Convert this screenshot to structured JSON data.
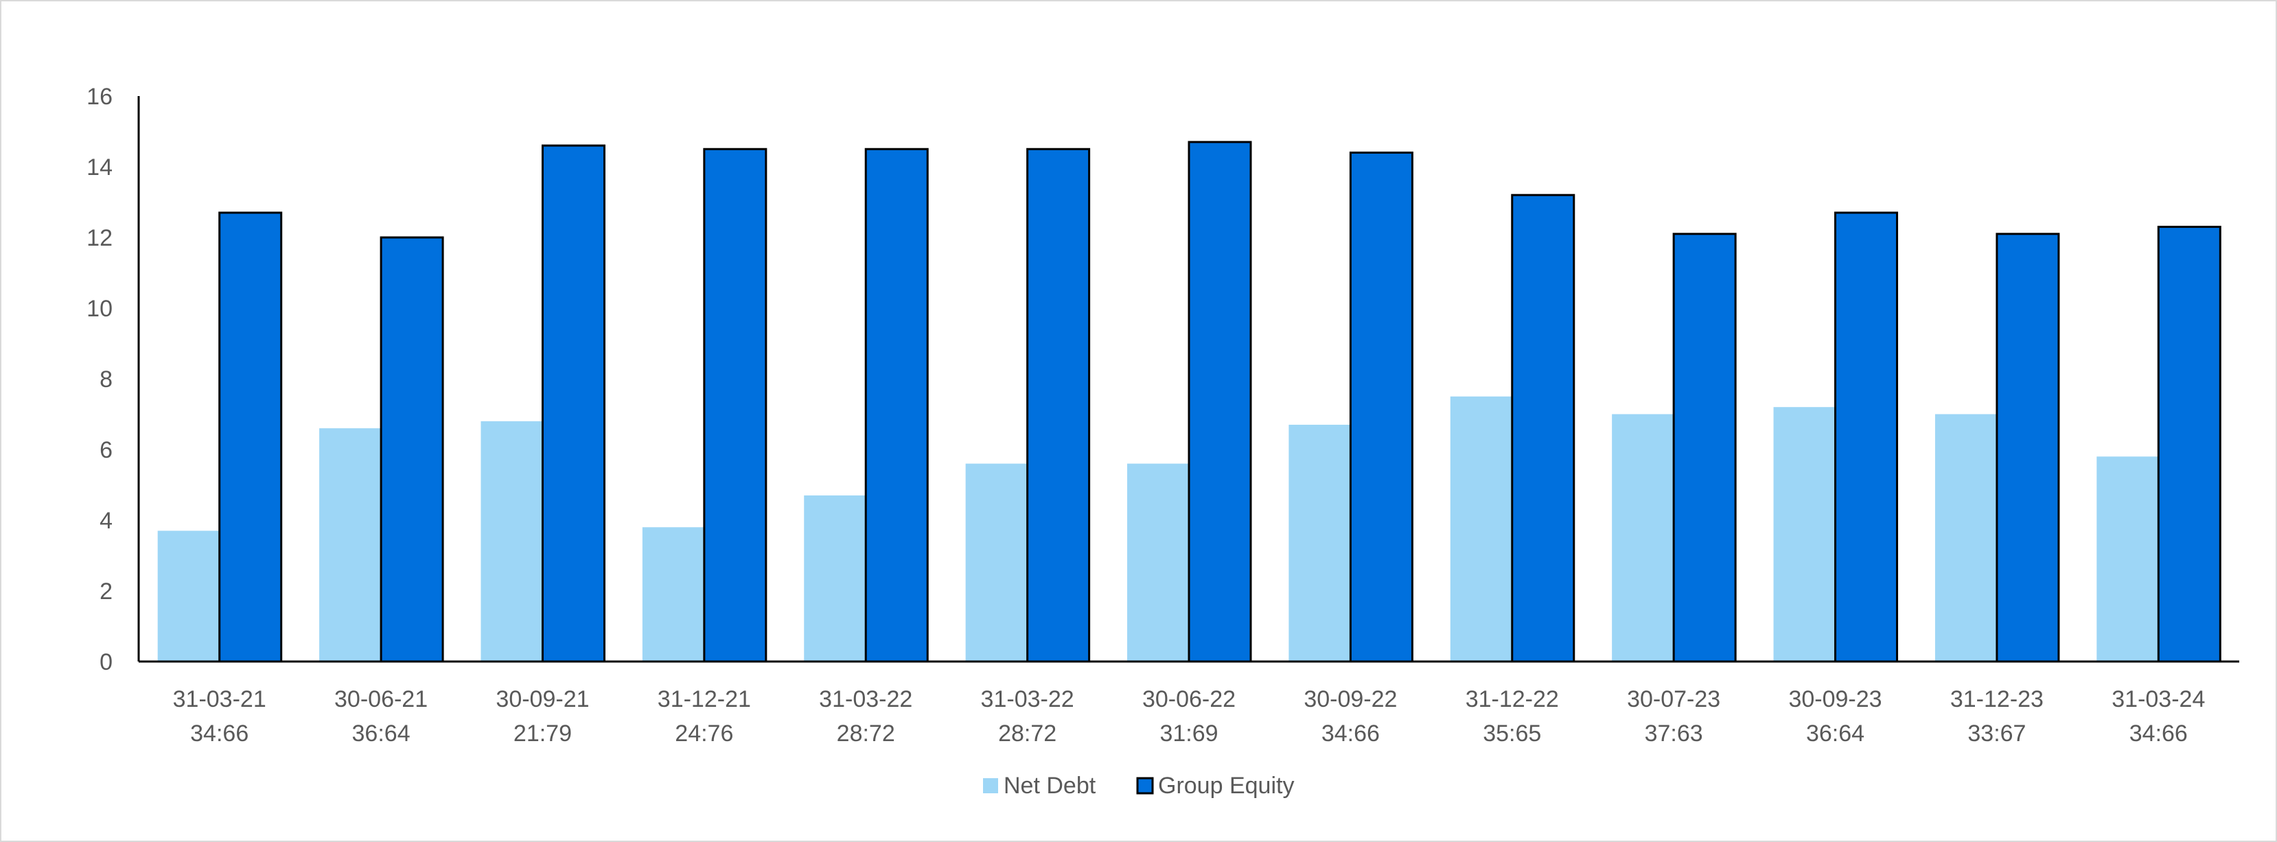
{
  "chart_data": {
    "type": "bar",
    "categories": [
      [
        "31-03-21",
        "34:66"
      ],
      [
        "30-06-21",
        "36:64"
      ],
      [
        "30-09-21",
        "21:79"
      ],
      [
        "31-12-21",
        "24:76"
      ],
      [
        "31-03-22",
        "28:72"
      ],
      [
        "31-03-22",
        "28:72"
      ],
      [
        "30-06-22",
        "31:69"
      ],
      [
        "30-09-22",
        "34:66"
      ],
      [
        "31-12-22",
        "35:65"
      ],
      [
        "30-07-23",
        "37:63"
      ],
      [
        "30-09-23",
        "36:64"
      ],
      [
        "31-12-23",
        "33:67"
      ],
      [
        "31-03-24",
        "34:66"
      ]
    ],
    "series": [
      {
        "name": "Net Debt",
        "color": "#9dd6f6",
        "values": [
          3.7,
          6.6,
          6.8,
          3.8,
          4.7,
          5.6,
          5.6,
          6.7,
          7.5,
          7.0,
          7.2,
          7.0,
          5.8
        ]
      },
      {
        "name": "Group Equity",
        "color": "#0070dd",
        "values": [
          12.7,
          12.0,
          14.6,
          14.5,
          14.5,
          14.5,
          14.7,
          14.4,
          13.2,
          12.1,
          12.7,
          12.1,
          12.3
        ]
      }
    ],
    "yticks": [
      0,
      2,
      4,
      6,
      8,
      10,
      12,
      14,
      16
    ],
    "ylim": [
      0,
      16
    ],
    "grid": false,
    "legend": "bottom-center"
  }
}
